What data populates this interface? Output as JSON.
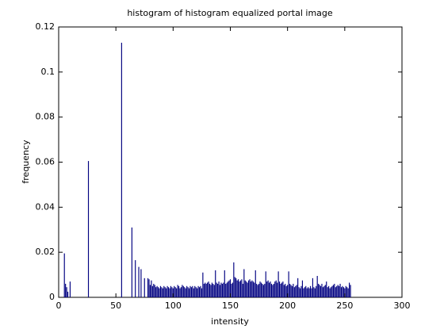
{
  "chart_data": {
    "type": "bar",
    "title": "histogram of histogram equalized portal image",
    "xlabel": "intensity",
    "ylabel": "frequency",
    "color": "#000080",
    "xlim": [
      0,
      300
    ],
    "xticks": [
      0,
      50,
      100,
      150,
      200,
      250,
      300
    ],
    "ylim": [
      0,
      0.12
    ],
    "yticks": [
      0,
      0.02,
      0.04,
      0.06,
      0.08,
      0.1,
      0.12
    ],
    "x": [
      5,
      6,
      7,
      8,
      10,
      26,
      55,
      64,
      67,
      70,
      72,
      75,
      78,
      79,
      80,
      81,
      82,
      83,
      84,
      85,
      86,
      87,
      88,
      89,
      90,
      91,
      92,
      93,
      94,
      95,
      96,
      97,
      98,
      99,
      100,
      101,
      102,
      103,
      104,
      105,
      106,
      107,
      108,
      109,
      110,
      111,
      112,
      113,
      114,
      115,
      116,
      117,
      118,
      119,
      120,
      121,
      122,
      123,
      124,
      125,
      126,
      127,
      128,
      129,
      130,
      131,
      132,
      133,
      134,
      135,
      136,
      137,
      138,
      139,
      140,
      141,
      142,
      143,
      144,
      145,
      146,
      147,
      148,
      149,
      150,
      151,
      152,
      153,
      154,
      155,
      156,
      157,
      158,
      159,
      160,
      161,
      162,
      163,
      164,
      165,
      166,
      167,
      168,
      169,
      170,
      171,
      172,
      173,
      174,
      175,
      176,
      177,
      178,
      179,
      180,
      181,
      182,
      183,
      184,
      185,
      186,
      187,
      188,
      189,
      190,
      191,
      192,
      193,
      194,
      195,
      196,
      197,
      198,
      199,
      200,
      201,
      202,
      203,
      204,
      205,
      206,
      207,
      208,
      209,
      210,
      211,
      212,
      213,
      214,
      215,
      216,
      217,
      218,
      219,
      220,
      221,
      222,
      223,
      224,
      225,
      226,
      227,
      228,
      229,
      230,
      231,
      232,
      233,
      234,
      235,
      236,
      237,
      238,
      239,
      240,
      241,
      242,
      243,
      244,
      245,
      246,
      247,
      248,
      249,
      250,
      251,
      252,
      253,
      254,
      255
    ],
    "values": [
      0.0195,
      0.006,
      0.0045,
      0.0025,
      0.007,
      0.0605,
      0.113,
      0.031,
      0.0165,
      0.0135,
      0.0125,
      0.0085,
      0.0085,
      0.008,
      0.0055,
      0.0075,
      0.005,
      0.006,
      0.0055,
      0.0045,
      0.005,
      0.0045,
      0.004,
      0.005,
      0.0045,
      0.004,
      0.005,
      0.0045,
      0.004,
      0.005,
      0.0045,
      0.004,
      0.005,
      0.0045,
      0.004,
      0.005,
      0.0045,
      0.004,
      0.0055,
      0.005,
      0.004,
      0.0045,
      0.0055,
      0.005,
      0.0045,
      0.004,
      0.005,
      0.0045,
      0.004,
      0.005,
      0.0045,
      0.005,
      0.004,
      0.005,
      0.0045,
      0.004,
      0.005,
      0.0045,
      0.005,
      0.004,
      0.011,
      0.006,
      0.0065,
      0.006,
      0.0065,
      0.007,
      0.006,
      0.0055,
      0.0065,
      0.006,
      0.0055,
      0.012,
      0.0065,
      0.006,
      0.007,
      0.0055,
      0.0065,
      0.006,
      0.0065,
      0.012,
      0.006,
      0.0065,
      0.007,
      0.0075,
      0.008,
      0.006,
      0.0065,
      0.0155,
      0.009,
      0.0085,
      0.0075,
      0.008,
      0.007,
      0.0075,
      0.008,
      0.006,
      0.0125,
      0.0075,
      0.007,
      0.0065,
      0.0075,
      0.008,
      0.007,
      0.0075,
      0.007,
      0.0065,
      0.012,
      0.006,
      0.0055,
      0.006,
      0.007,
      0.0065,
      0.006,
      0.0055,
      0.006,
      0.0115,
      0.007,
      0.0075,
      0.0065,
      0.007,
      0.006,
      0.0055,
      0.006,
      0.007,
      0.0075,
      0.0065,
      0.0115,
      0.007,
      0.006,
      0.0065,
      0.007,
      0.0055,
      0.006,
      0.005,
      0.0055,
      0.0115,
      0.006,
      0.0055,
      0.005,
      0.006,
      0.0045,
      0.005,
      0.0055,
      0.0085,
      0.0045,
      0.004,
      0.005,
      0.0075,
      0.004,
      0.0045,
      0.005,
      0.004,
      0.0045,
      0.004,
      0.005,
      0.004,
      0.0085,
      0.0045,
      0.004,
      0.005,
      0.0095,
      0.006,
      0.0055,
      0.005,
      0.006,
      0.0045,
      0.005,
      0.0055,
      0.007,
      0.0045,
      0.005,
      0.004,
      0.0045,
      0.005,
      0.0055,
      0.006,
      0.0045,
      0.005,
      0.0055,
      0.005,
      0.006,
      0.0045,
      0.005,
      0.0045,
      0.004,
      0.005,
      0.0045,
      0.004,
      0.0065,
      0.0055
    ]
  }
}
